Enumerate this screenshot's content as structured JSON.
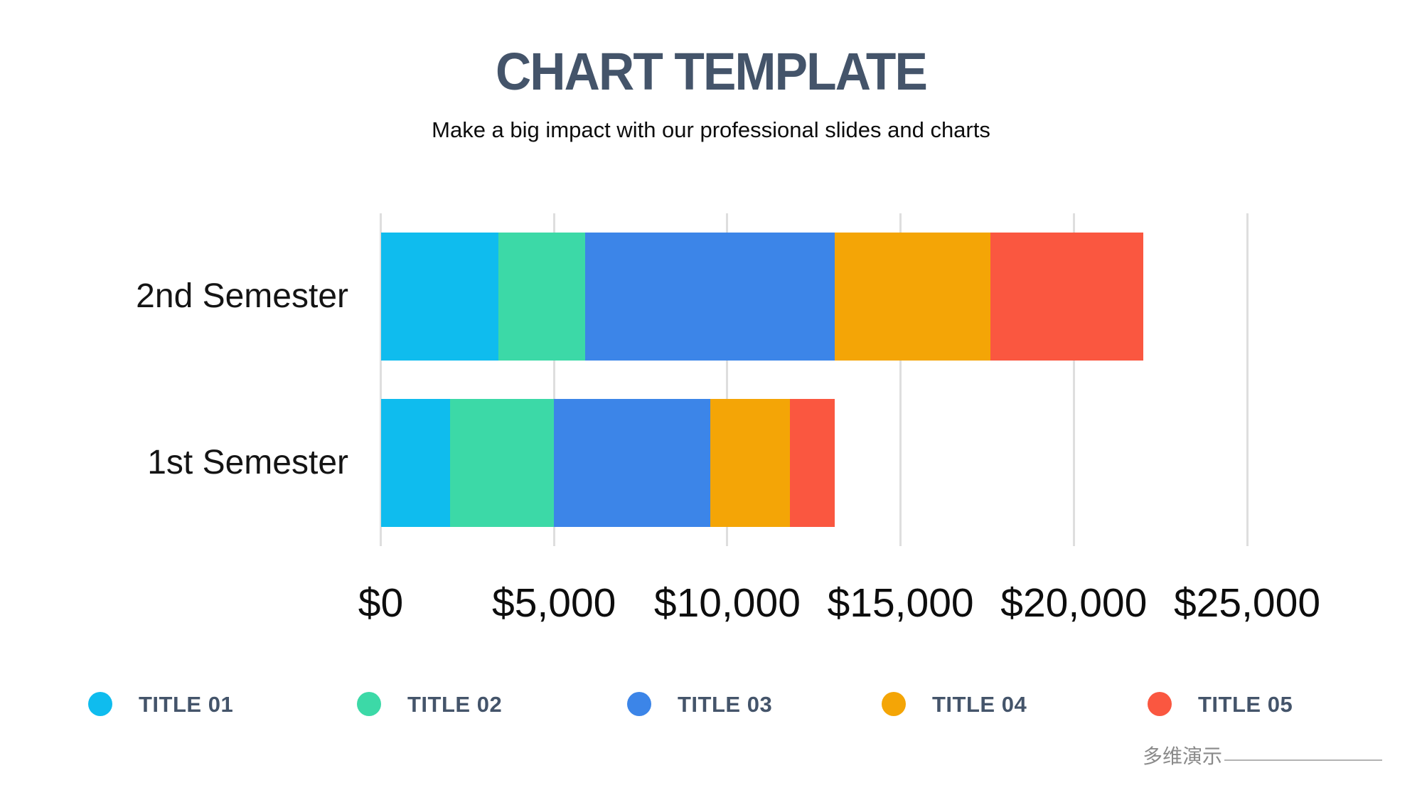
{
  "header": {
    "title": "CHART TEMPLATE",
    "subtitle": "Make a big impact with our professional slides and charts"
  },
  "chart_data": {
    "type": "bar",
    "orientation": "horizontal",
    "stacked": true,
    "title": "CHART TEMPLATE",
    "categories": [
      "2nd Semester",
      "1st Semester"
    ],
    "series": [
      {
        "name": "TITLE 01",
        "color": "#0fbcee",
        "values": [
          3400,
          2000
        ]
      },
      {
        "name": "TITLE 02",
        "color": "#3cd9a7",
        "values": [
          2500,
          3000
        ]
      },
      {
        "name": "TITLE 03",
        "color": "#3c85e8",
        "values": [
          7200,
          4500
        ]
      },
      {
        "name": "TITLE 04",
        "color": "#f4a506",
        "values": [
          4500,
          2300
        ]
      },
      {
        "name": "TITLE 05",
        "color": "#fa5740",
        "values": [
          4400,
          1300
        ]
      }
    ],
    "totals": [
      22000,
      13100
    ],
    "x_axis": {
      "tick_labels": [
        "$0",
        "$5,000",
        "$10,000",
        "$15,000",
        "$20,000",
        "$25,000"
      ],
      "tick_values": [
        0,
        5000,
        10000,
        15000,
        20000,
        25000
      ],
      "min": 0,
      "max": 25000,
      "unit": "USD"
    },
    "grid": true,
    "legend_position": "bottom"
  },
  "footer": {
    "brand": "多维演示"
  }
}
